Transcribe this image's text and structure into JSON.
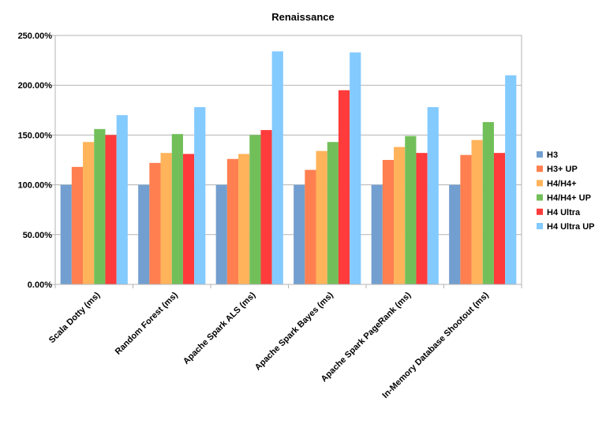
{
  "chart_data": {
    "type": "bar",
    "title": "Renaissance",
    "xlabel": "",
    "ylabel": "",
    "ylim": [
      0,
      250
    ],
    "ytick_values": [
      0,
      50,
      100,
      150,
      200,
      250
    ],
    "ytick_labels": [
      "0.00%",
      "50.00%",
      "100.00%",
      "150.00%",
      "200.00%",
      "250.00%"
    ],
    "grid": true,
    "legend_position": "right",
    "categories": [
      "Scala Dotty (ms)",
      "Random Forest (ms)",
      "Apache Spark ALS (ms)",
      "Apache Spark Bayes (ms)",
      "Apache Spark PageRank (ms)",
      "In-Memory Database Shootout (ms)"
    ],
    "series": [
      {
        "name": "H3",
        "color": "#729fcf",
        "values": [
          100,
          100,
          100,
          100,
          100,
          100
        ]
      },
      {
        "name": "H3+ UP",
        "color": "#ff7f50",
        "values": [
          118,
          122,
          126,
          115,
          125,
          130
        ]
      },
      {
        "name": "H4/H4+",
        "color": "#ffb35a",
        "values": [
          143,
          132,
          131,
          134,
          138,
          145
        ]
      },
      {
        "name": "H4/H4+ UP",
        "color": "#72bf5a",
        "values": [
          156,
          151,
          150,
          143,
          149,
          163
        ]
      },
      {
        "name": "H4 Ultra",
        "color": "#ff3b3b",
        "values": [
          150,
          131,
          155,
          195,
          132,
          132
        ]
      },
      {
        "name": "H4 Ultra UP",
        "color": "#83caff",
        "values": [
          170,
          178,
          234,
          233,
          178,
          210
        ]
      }
    ]
  }
}
